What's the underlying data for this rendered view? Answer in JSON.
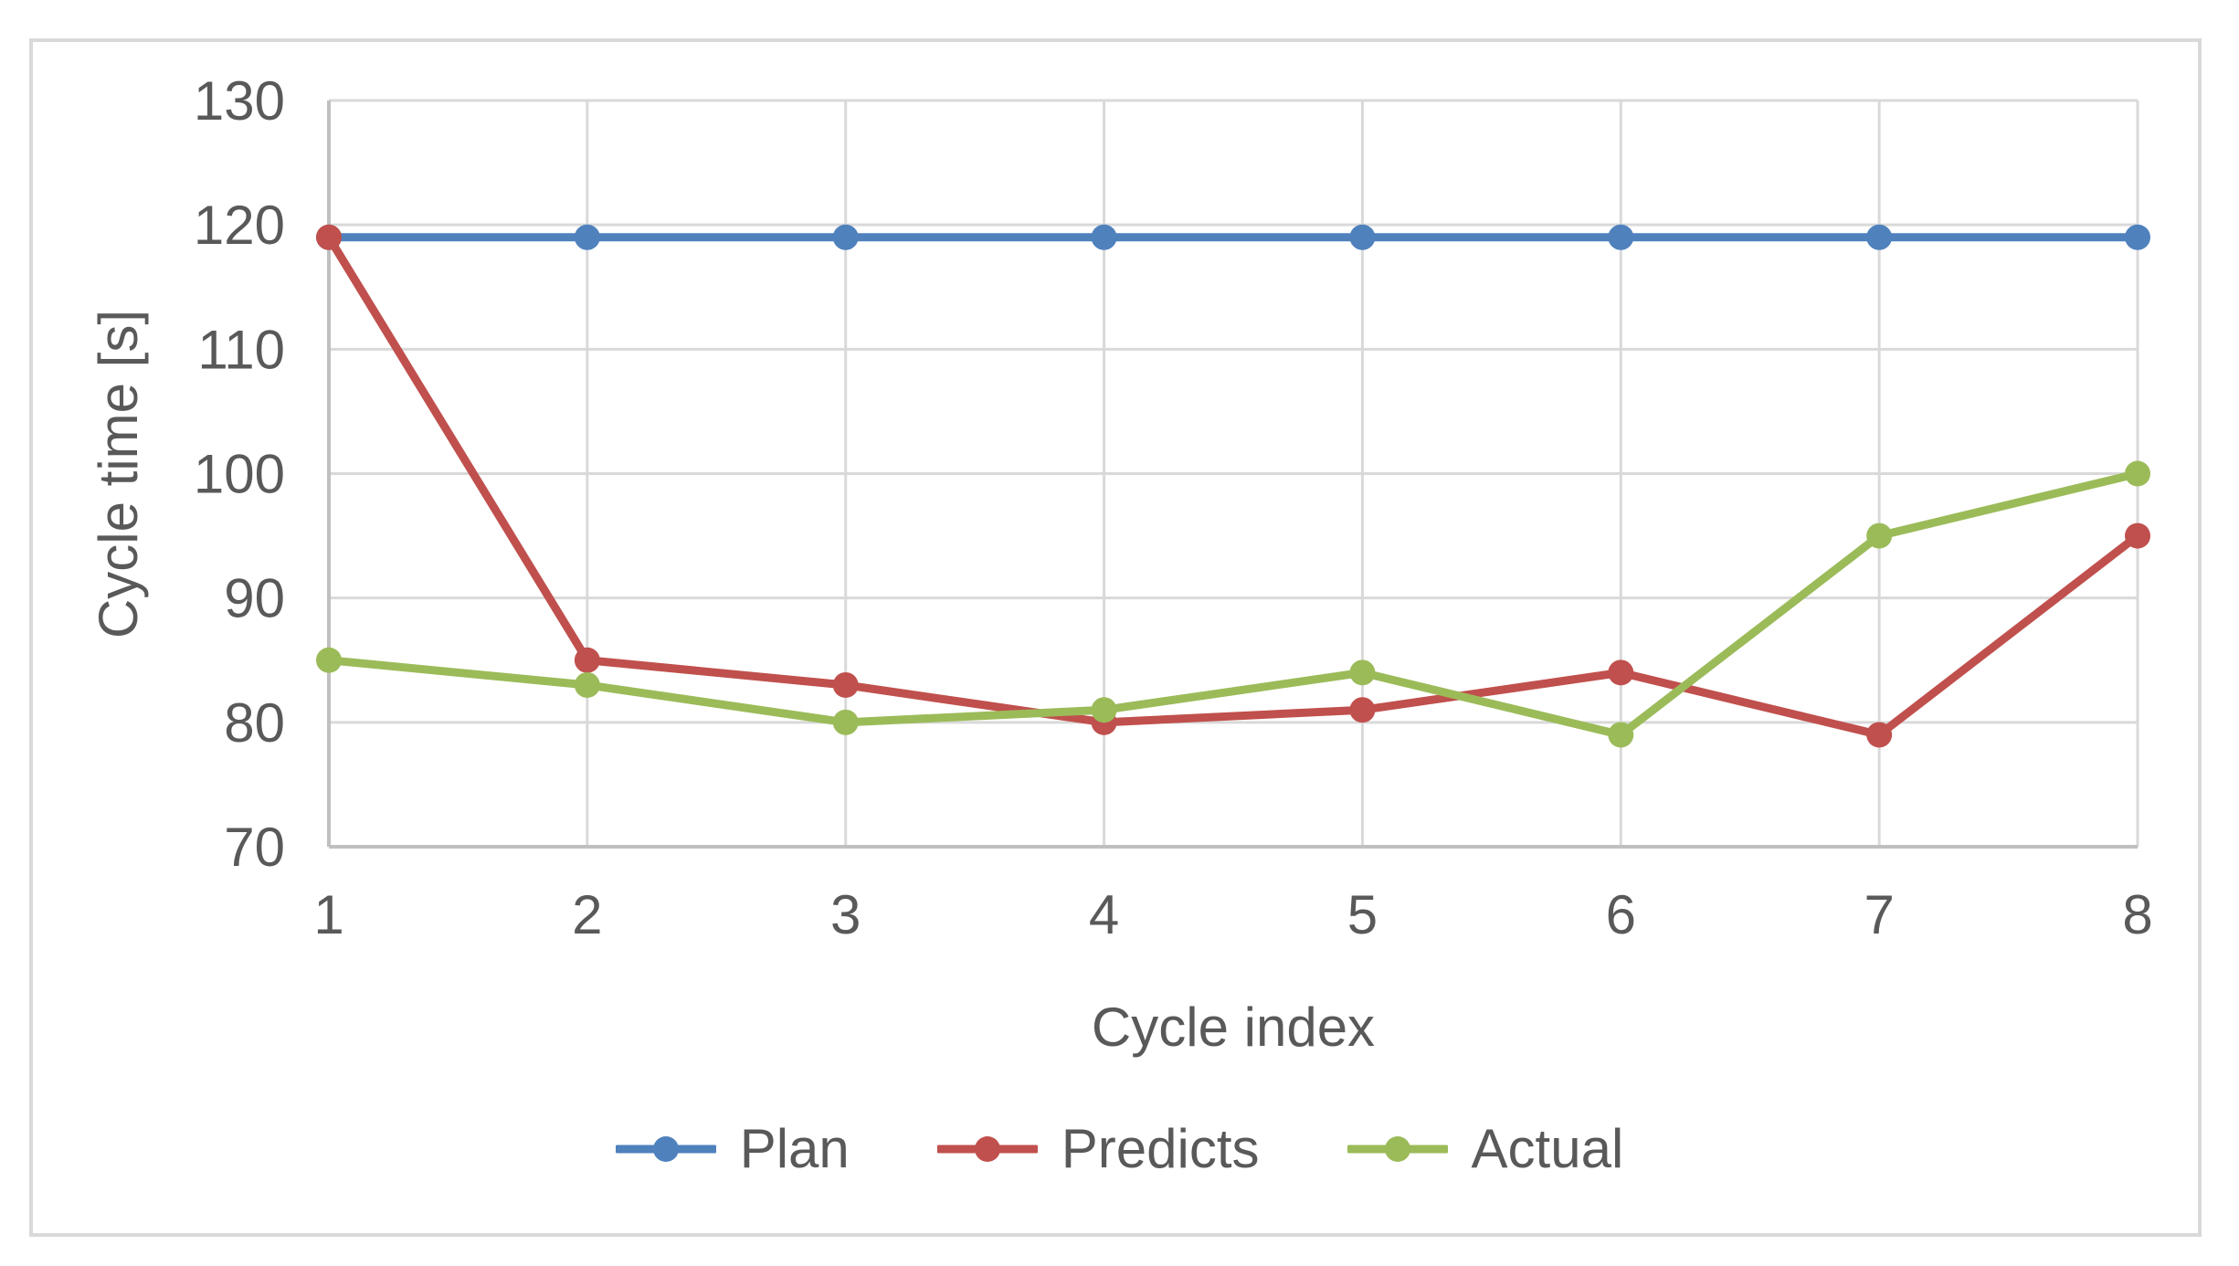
{
  "chart_data": {
    "type": "line",
    "title": "",
    "xlabel": "Cycle index",
    "ylabel": "Cycle time [s]",
    "x": [
      1,
      2,
      3,
      4,
      5,
      6,
      7,
      8
    ],
    "x_tick_labels": [
      "1",
      "2",
      "3",
      "4",
      "5",
      "6",
      "7",
      "8"
    ],
    "y_ticks": [
      70,
      80,
      90,
      100,
      110,
      120,
      130
    ],
    "ylim": [
      70,
      130
    ],
    "grid": true,
    "legend_position": "bottom",
    "series": [
      {
        "name": "Plan",
        "color": "#4F81BD",
        "values": [
          119,
          119,
          119,
          119,
          119,
          119,
          119,
          119
        ]
      },
      {
        "name": "Predicts",
        "color": "#C0504D",
        "values": [
          119,
          85,
          83,
          80,
          81,
          84,
          79,
          95
        ]
      },
      {
        "name": "Actual",
        "color": "#9BBB59",
        "values": [
          85,
          83,
          80,
          81,
          84,
          79,
          95,
          100
        ]
      }
    ]
  },
  "styles": {
    "grid_color": "#D9D9D9",
    "axis_color": "#BFBFBF",
    "label_color": "#595959",
    "border_color": "#D9D9D9",
    "background": "#FFFFFF",
    "line_width": 9,
    "marker_radius": 14
  }
}
